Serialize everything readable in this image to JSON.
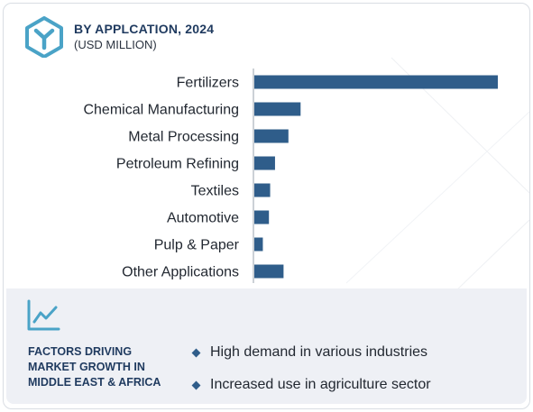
{
  "header": {
    "title": "BY APPLCATION, 2024",
    "subtitle": "(USD MILLION)",
    "logo_icon": "brand-hexagon-y-icon"
  },
  "chart_data": {
    "type": "bar",
    "orientation": "horizontal",
    "title": "BY APPLCATION, 2024",
    "subtitle": "(USD MILLION)",
    "categories": [
      "Fertilizers",
      "Chemical Manufacturing",
      "Metal Processing",
      "Petroleum Refining",
      "Textiles",
      "Automotive",
      "Pulp & Paper",
      "Other Applications"
    ],
    "values": [
      100,
      19,
      14,
      8.5,
      6.5,
      6,
      3.5,
      12
    ],
    "value_note": "relative bar lengths (no axis ticks shown)",
    "xlim": [
      0,
      100
    ],
    "bar_color": "#2f5d8a",
    "grid": false,
    "legend": "none"
  },
  "factors": {
    "icon": "trend-line-icon",
    "title_lines": [
      "FACTORS DRIVING",
      "MARKET GROWTH IN",
      "MIDDLE EAST & AFRICA"
    ],
    "items": [
      "High demand in various industries",
      "Increased use in agriculture sector"
    ]
  },
  "colors": {
    "accent": "#2f5d8a",
    "title": "#1f3a5f",
    "panel": "#eef0f5",
    "logo": "#4aa3c7"
  }
}
